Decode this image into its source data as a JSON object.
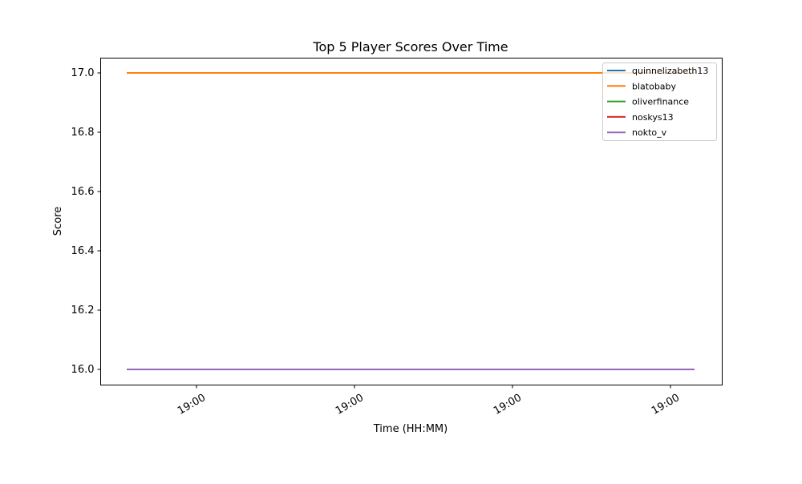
{
  "chart_data": {
    "type": "line",
    "title": "Top 5 Player Scores Over Time",
    "xlabel": "Time (HH:MM)",
    "ylabel": "Score",
    "ylim": [
      15.95,
      17.05
    ],
    "yticks": [
      "16.0",
      "16.2",
      "16.4",
      "16.6",
      "16.8",
      "17.0"
    ],
    "ytick_values": [
      16.0,
      16.2,
      16.4,
      16.6,
      16.8,
      17.0
    ],
    "xticks": [
      "19:00",
      "19:00",
      "19:00",
      "19:00"
    ],
    "grid": false,
    "legend_position": "top-right",
    "series": [
      {
        "name": "quinnelizabeth13",
        "color": "#1f77b4",
        "values": [
          17.0,
          17.0
        ]
      },
      {
        "name": "blatobaby",
        "color": "#ff7f0e",
        "values": [
          17.0,
          17.0
        ]
      },
      {
        "name": "oliverfinance",
        "color": "#2ca02c",
        "values": [
          16.0,
          16.0
        ]
      },
      {
        "name": "noskys13",
        "color": "#d62728",
        "values": [
          16.0,
          16.0
        ]
      },
      {
        "name": "nokto_v",
        "color": "#9467bd",
        "values": [
          16.0,
          16.0
        ]
      }
    ]
  }
}
